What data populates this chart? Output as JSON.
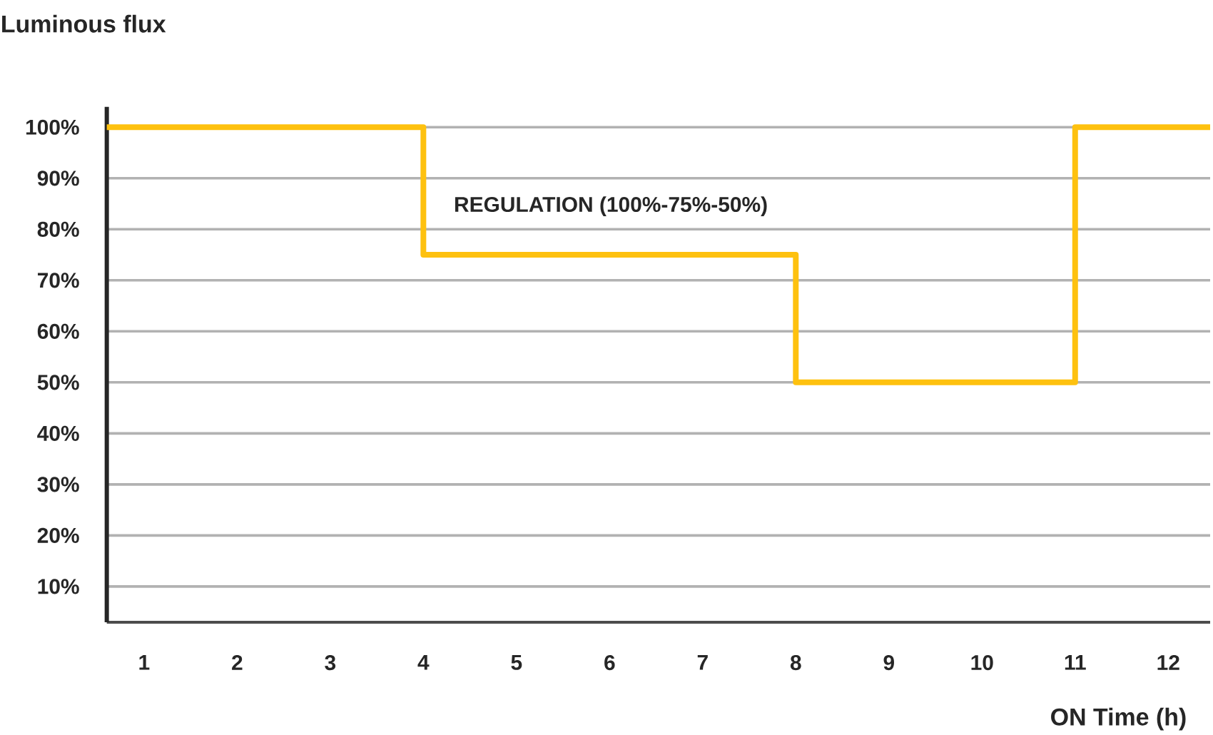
{
  "chart_data": {
    "type": "step",
    "title": "Luminous flux",
    "xlabel": "ON Time (h)",
    "x": [
      0.6,
      4,
      8,
      11,
      12.45
    ],
    "series": [
      {
        "color": "#fec10f",
        "values": [
          100,
          75,
          50,
          100,
          100
        ]
      }
    ],
    "xlim": [
      0.6,
      12.45
    ],
    "xticks": [
      1,
      2,
      3,
      4,
      5,
      6,
      7,
      8,
      9,
      10,
      11,
      12
    ],
    "ylim": [
      3,
      104
    ],
    "yticks": [
      {
        "value": 10,
        "label": "10%"
      },
      {
        "value": 20,
        "label": "20%"
      },
      {
        "value": 30,
        "label": "30%"
      },
      {
        "value": 40,
        "label": "40%"
      },
      {
        "value": 50,
        "label": "50%"
      },
      {
        "value": 60,
        "label": "60%"
      },
      {
        "value": 70,
        "label": "70%"
      },
      {
        "value": 80,
        "label": "80%"
      },
      {
        "value": 90,
        "label": "90%"
      },
      {
        "value": 100,
        "label": "100%"
      }
    ],
    "grid": "y",
    "annotations": [
      "REGULATION (100%-75%-50%)"
    ]
  }
}
